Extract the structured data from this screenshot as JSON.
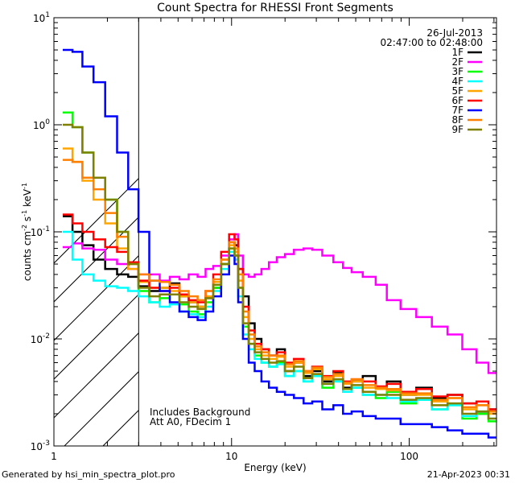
{
  "chart_data": {
    "type": "line",
    "title": "Count Spectra for RHESSI Front Segments",
    "xlabel": "Energy (keV)",
    "ylabel_parts": [
      "counts cm",
      "-2",
      " s",
      "-1",
      " keV",
      "-1"
    ],
    "xscale": "log",
    "yscale": "log",
    "xlim": [
      1,
      310
    ],
    "ylim": [
      0.001,
      10
    ],
    "x_ticks": [
      {
        "v": 1,
        "label": "1"
      },
      {
        "v": 10,
        "label": "10"
      },
      {
        "v": 100,
        "label": "100"
      }
    ],
    "y_ticks": [
      {
        "v": 0.001,
        "base": "10",
        "exp": "-3"
      },
      {
        "v": 0.01,
        "base": "10",
        "exp": "-2"
      },
      {
        "v": 0.1,
        "base": "10",
        "exp": "-1"
      },
      {
        "v": 1,
        "base": "10",
        "exp": "0"
      },
      {
        "v": 10,
        "base": "10",
        "exp": "1"
      }
    ],
    "date": "26-Jul-2013",
    "time_range": "02:47:00 to 02:48:00",
    "annotation_lines": [
      "Includes Background",
      "Att A0, FDecim 1"
    ],
    "excluded_region_max_kev": 3,
    "legend_position": "top-right",
    "series": [
      {
        "name": "1F",
        "color": "#000000",
        "x": [
          1.2,
          1.35,
          1.55,
          1.8,
          2.1,
          2.45,
          2.8,
          3.2,
          3.7,
          4.2,
          4.8,
          5.4,
          6.1,
          6.8,
          7.5,
          8.3,
          9.2,
          10.2,
          10.6,
          11.2,
          12,
          13,
          14,
          15.5,
          17,
          19,
          21,
          24,
          27,
          30,
          35,
          40,
          45,
          50,
          60,
          70,
          80,
          100,
          120,
          150,
          180,
          220,
          260,
          300
        ],
        "y": [
          0.14,
          0.1,
          0.075,
          0.055,
          0.045,
          0.04,
          0.038,
          0.031,
          0.028,
          0.03,
          0.033,
          0.025,
          0.022,
          0.02,
          0.024,
          0.03,
          0.05,
          0.08,
          0.075,
          0.045,
          0.025,
          0.014,
          0.01,
          0.008,
          0.007,
          0.008,
          0.005,
          0.006,
          0.0045,
          0.005,
          0.004,
          0.0048,
          0.0035,
          0.004,
          0.0045,
          0.0035,
          0.004,
          0.003,
          0.0035,
          0.0028,
          0.003,
          0.0025,
          0.002,
          0.0022
        ]
      },
      {
        "name": "2F",
        "color": "#ff00ff",
        "x": [
          1.2,
          1.35,
          1.55,
          1.8,
          2.1,
          2.45,
          2.8,
          3.2,
          3.7,
          4.2,
          4.8,
          5.4,
          6.1,
          6.8,
          7.5,
          8.3,
          9.2,
          10.2,
          10.6,
          11.2,
          12,
          13,
          14,
          15.5,
          17,
          19,
          21,
          24,
          27,
          30,
          35,
          40,
          45,
          50,
          60,
          70,
          80,
          100,
          120,
          150,
          180,
          220,
          260,
          300
        ],
        "y": [
          0.072,
          0.078,
          0.07,
          0.068,
          0.055,
          0.05,
          0.045,
          0.04,
          0.04,
          0.035,
          0.038,
          0.036,
          0.04,
          0.038,
          0.045,
          0.048,
          0.06,
          0.085,
          0.095,
          0.06,
          0.04,
          0.038,
          0.04,
          0.045,
          0.052,
          0.058,
          0.062,
          0.068,
          0.07,
          0.068,
          0.06,
          0.052,
          0.046,
          0.042,
          0.038,
          0.032,
          0.023,
          0.019,
          0.016,
          0.013,
          0.011,
          0.008,
          0.006,
          0.0048
        ]
      },
      {
        "name": "3F",
        "color": "#00ff00",
        "x": [
          1.2,
          1.35,
          1.55,
          1.8,
          2.1,
          2.45,
          2.8,
          3.2,
          3.7,
          4.2,
          4.8,
          5.4,
          6.1,
          6.8,
          7.5,
          8.3,
          9.2,
          10.2,
          10.6,
          11.2,
          12,
          13,
          14,
          15.5,
          17,
          19,
          21,
          24,
          27,
          30,
          35,
          40,
          45,
          50,
          60,
          70,
          80,
          100,
          120,
          150,
          180,
          220,
          260,
          300
        ],
        "y": [
          1.3,
          0.95,
          0.55,
          0.32,
          0.2,
          0.1,
          0.052,
          0.028,
          0.022,
          0.024,
          0.026,
          0.021,
          0.018,
          0.017,
          0.022,
          0.03,
          0.05,
          0.07,
          0.06,
          0.03,
          0.013,
          0.009,
          0.007,
          0.006,
          0.0055,
          0.006,
          0.0045,
          0.005,
          0.004,
          0.0045,
          0.0035,
          0.004,
          0.0032,
          0.0035,
          0.003,
          0.0028,
          0.0032,
          0.0025,
          0.0027,
          0.0022,
          0.0024,
          0.0018,
          0.002,
          0.0017
        ]
      },
      {
        "name": "4F",
        "color": "#00ffff",
        "x": [
          1.2,
          1.35,
          1.55,
          1.8,
          2.1,
          2.45,
          2.8,
          3.2,
          3.7,
          4.2,
          4.8,
          5.4,
          6.1,
          6.8,
          7.5,
          8.3,
          9.2,
          10.2,
          10.6,
          11.2,
          12,
          13,
          14,
          15.5,
          17,
          19,
          21,
          24,
          27,
          30,
          35,
          40,
          45,
          50,
          60,
          70,
          80,
          100,
          120,
          150,
          180,
          220,
          260,
          300
        ],
        "y": [
          0.1,
          0.055,
          0.04,
          0.035,
          0.031,
          0.03,
          0.028,
          0.025,
          0.022,
          0.02,
          0.021,
          0.018,
          0.017,
          0.016,
          0.02,
          0.028,
          0.045,
          0.065,
          0.055,
          0.025,
          0.011,
          0.008,
          0.0065,
          0.006,
          0.0055,
          0.0058,
          0.0045,
          0.005,
          0.004,
          0.0045,
          0.0038,
          0.004,
          0.0032,
          0.0035,
          0.003,
          0.003,
          0.0028,
          0.0026,
          0.0027,
          0.0022,
          0.0024,
          0.0019,
          0.0021,
          0.0018
        ]
      },
      {
        "name": "5F",
        "color": "#ffa500",
        "x": [
          1.2,
          1.35,
          1.55,
          1.8,
          2.1,
          2.45,
          2.8,
          3.2,
          3.7,
          4.2,
          4.8,
          5.4,
          6.1,
          6.8,
          7.5,
          8.3,
          9.2,
          10.2,
          10.6,
          11.2,
          12,
          13,
          14,
          15.5,
          17,
          19,
          21,
          24,
          27,
          30,
          35,
          40,
          45,
          50,
          60,
          70,
          80,
          100,
          120,
          150,
          180,
          220,
          260,
          300
        ],
        "y": [
          0.6,
          0.45,
          0.3,
          0.2,
          0.12,
          0.07,
          0.045,
          0.034,
          0.03,
          0.03,
          0.028,
          0.025,
          0.022,
          0.02,
          0.025,
          0.034,
          0.055,
          0.075,
          0.065,
          0.035,
          0.016,
          0.01,
          0.008,
          0.007,
          0.0065,
          0.0068,
          0.0055,
          0.006,
          0.0048,
          0.0052,
          0.0042,
          0.0045,
          0.0038,
          0.004,
          0.0035,
          0.0034,
          0.0033,
          0.003,
          0.003,
          0.0026,
          0.0028,
          0.0022,
          0.0024,
          0.002
        ]
      },
      {
        "name": "6F",
        "color": "#ff0000",
        "x": [
          1.2,
          1.35,
          1.55,
          1.8,
          2.1,
          2.45,
          2.8,
          3.2,
          3.7,
          4.2,
          4.8,
          5.4,
          6.1,
          6.8,
          7.5,
          8.3,
          9.2,
          10.2,
          10.6,
          11.2,
          12,
          13,
          14,
          15.5,
          17,
          19,
          21,
          24,
          27,
          30,
          35,
          40,
          45,
          50,
          60,
          70,
          80,
          100,
          120,
          150,
          180,
          220,
          260,
          300
        ],
        "y": [
          0.145,
          0.12,
          0.1,
          0.085,
          0.072,
          0.065,
          0.052,
          0.035,
          0.03,
          0.028,
          0.03,
          0.026,
          0.023,
          0.022,
          0.028,
          0.04,
          0.065,
          0.095,
          0.085,
          0.045,
          0.02,
          0.012,
          0.009,
          0.008,
          0.007,
          0.0075,
          0.006,
          0.0065,
          0.005,
          0.0055,
          0.0045,
          0.005,
          0.004,
          0.0042,
          0.004,
          0.0036,
          0.0038,
          0.0032,
          0.0034,
          0.0029,
          0.003,
          0.0025,
          0.0026,
          0.0022
        ]
      },
      {
        "name": "7F",
        "color": "#0000ff",
        "x": [
          1.2,
          1.35,
          1.55,
          1.8,
          2.1,
          2.45,
          2.8,
          3.2,
          3.7,
          4.2,
          4.8,
          5.4,
          6.1,
          6.8,
          7.5,
          8.3,
          9.2,
          10.2,
          10.6,
          11.2,
          12,
          13,
          14,
          15.5,
          17,
          19,
          21,
          24,
          27,
          30,
          35,
          40,
          45,
          50,
          60,
          70,
          80,
          100,
          120,
          150,
          180,
          220,
          260,
          300
        ],
        "y": [
          5.0,
          4.8,
          3.5,
          2.5,
          1.2,
          0.55,
          0.25,
          0.1,
          0.035,
          0.028,
          0.022,
          0.018,
          0.016,
          0.015,
          0.018,
          0.025,
          0.04,
          0.06,
          0.05,
          0.022,
          0.01,
          0.006,
          0.005,
          0.004,
          0.0035,
          0.0032,
          0.003,
          0.0028,
          0.0025,
          0.0026,
          0.0022,
          0.0024,
          0.002,
          0.0021,
          0.0019,
          0.0018,
          0.0018,
          0.0016,
          0.0016,
          0.0015,
          0.0014,
          0.0013,
          0.0013,
          0.0012
        ]
      },
      {
        "name": "8F",
        "color": "#ff8000",
        "x": [
          1.2,
          1.35,
          1.55,
          1.8,
          2.1,
          2.45,
          2.8,
          3.2,
          3.7,
          4.2,
          4.8,
          5.4,
          6.1,
          6.8,
          7.5,
          8.3,
          9.2,
          10.2,
          10.6,
          11.2,
          12,
          13,
          14,
          15.5,
          17,
          19,
          21,
          24,
          27,
          30,
          35,
          40,
          45,
          50,
          60,
          70,
          80,
          100,
          120,
          150,
          180,
          220,
          260,
          300
        ],
        "y": [
          0.47,
          0.45,
          0.32,
          0.25,
          0.15,
          0.09,
          0.05,
          0.04,
          0.035,
          0.034,
          0.032,
          0.028,
          0.025,
          0.023,
          0.028,
          0.036,
          0.055,
          0.08,
          0.07,
          0.04,
          0.018,
          0.011,
          0.0085,
          0.0075,
          0.007,
          0.007,
          0.0058,
          0.0062,
          0.005,
          0.0054,
          0.0044,
          0.0047,
          0.0039,
          0.0042,
          0.0037,
          0.0035,
          0.0034,
          0.0031,
          0.0031,
          0.0027,
          0.0028,
          0.0023,
          0.0024,
          0.0021
        ]
      },
      {
        "name": "9F",
        "color": "#808000",
        "x": [
          1.2,
          1.35,
          1.55,
          1.8,
          2.1,
          2.45,
          2.8,
          3.2,
          3.7,
          4.2,
          4.8,
          5.4,
          6.1,
          6.8,
          7.5,
          8.3,
          9.2,
          10.2,
          10.6,
          11.2,
          12,
          13,
          14,
          15.5,
          17,
          19,
          21,
          24,
          27,
          30,
          35,
          40,
          45,
          50,
          60,
          70,
          80,
          100,
          120,
          150,
          180,
          220,
          260,
          300
        ],
        "y": [
          1.0,
          0.95,
          0.55,
          0.32,
          0.2,
          0.1,
          0.05,
          0.03,
          0.025,
          0.026,
          0.026,
          0.022,
          0.02,
          0.019,
          0.024,
          0.032,
          0.05,
          0.07,
          0.06,
          0.03,
          0.014,
          0.009,
          0.0075,
          0.0065,
          0.006,
          0.0062,
          0.005,
          0.0055,
          0.0043,
          0.0047,
          0.0038,
          0.0042,
          0.0034,
          0.0037,
          0.0032,
          0.003,
          0.003,
          0.0027,
          0.0028,
          0.0024,
          0.0025,
          0.002,
          0.0021,
          0.0018
        ]
      }
    ]
  },
  "footer": {
    "generated_by": "Generated by hsi_min_spectra_plot.pro",
    "timestamp": "21-Apr-2023 00:31"
  }
}
